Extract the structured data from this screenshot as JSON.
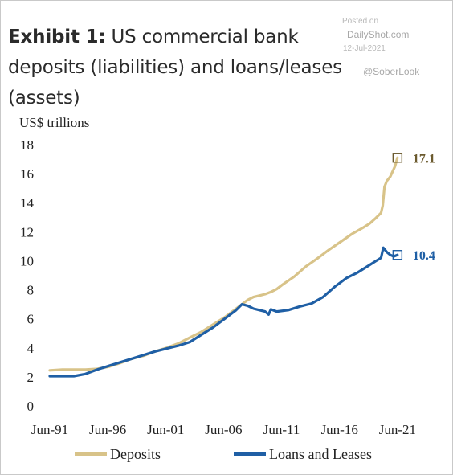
{
  "header": {
    "title_bold": "Exhibit 1:",
    "title_text": " US commercial bank deposits (liabilities) and loans/leases (assets)"
  },
  "watermark": {
    "posted": "Posted on",
    "site": "DailyShot.com",
    "date": "12-Jul-2021",
    "handle": "@SoberLook"
  },
  "chart_data": {
    "type": "line",
    "ylabel": "US$ trillions",
    "ylim": [
      0,
      18
    ],
    "yticks": [
      0,
      2,
      4,
      6,
      8,
      10,
      12,
      14,
      16,
      18
    ],
    "xlim": [
      1991.42,
      2021.5
    ],
    "xticks": [
      {
        "label": "Jun-91",
        "value": 1991.42
      },
      {
        "label": "Jun-96",
        "value": 1996.42
      },
      {
        "label": "Jun-01",
        "value": 2001.42
      },
      {
        "label": "Jun-06",
        "value": 2006.42
      },
      {
        "label": "Jun-11",
        "value": 2011.42
      },
      {
        "label": "Jun-16",
        "value": 2016.42
      },
      {
        "label": "Jun-21",
        "value": 2021.42
      }
    ],
    "grid": false,
    "legend_position": "bottom",
    "series": [
      {
        "name": "Deposits",
        "color": "#d8c389",
        "end_label": "17.1",
        "end_label_color": "#6b5a2e",
        "x": [
          1991.42,
          1992.5,
          1993.5,
          1994.5,
          1995.5,
          1996.5,
          1997.5,
          1998.5,
          1999.5,
          2000.5,
          2001.5,
          2002.5,
          2003.5,
          2004.5,
          2005.5,
          2006.5,
          2007.5,
          2008.0,
          2008.5,
          2009.0,
          2009.5,
          2010.0,
          2010.5,
          2011.0,
          2011.5,
          2012.5,
          2013.5,
          2014.5,
          2015.5,
          2016.5,
          2017.5,
          2018.5,
          2019.0,
          2019.5,
          2020.0,
          2020.15,
          2020.3,
          2020.5,
          2020.8,
          2021.2,
          2021.42
        ],
        "values": [
          2.45,
          2.5,
          2.5,
          2.5,
          2.55,
          2.7,
          2.95,
          3.25,
          3.45,
          3.75,
          4.0,
          4.3,
          4.7,
          5.1,
          5.6,
          6.1,
          6.7,
          7.0,
          7.3,
          7.5,
          7.6,
          7.7,
          7.85,
          8.05,
          8.35,
          8.9,
          9.6,
          10.15,
          10.75,
          11.3,
          11.85,
          12.3,
          12.55,
          12.9,
          13.3,
          13.8,
          15.1,
          15.5,
          15.8,
          16.5,
          17.1
        ]
      },
      {
        "name": "Loans and Leases",
        "color": "#1f5fa5",
        "end_label": "10.4",
        "end_label_color": "#1f5fa5",
        "x": [
          1991.42,
          1992.5,
          1993.5,
          1994.5,
          1995.5,
          1996.5,
          1997.5,
          1998.5,
          1999.5,
          2000.5,
          2001.5,
          2002.5,
          2003.5,
          2004.5,
          2005.5,
          2006.5,
          2007.5,
          2008.0,
          2008.5,
          2009.0,
          2009.5,
          2010.0,
          2010.3,
          2010.5,
          2011.0,
          2012.0,
          2013.0,
          2014.0,
          2015.0,
          2016.0,
          2017.0,
          2018.0,
          2019.0,
          2019.5,
          2020.0,
          2020.2,
          2020.5,
          2020.8,
          2021.1,
          2021.42
        ],
        "values": [
          2.05,
          2.05,
          2.05,
          2.2,
          2.5,
          2.75,
          3.0,
          3.25,
          3.5,
          3.75,
          3.95,
          4.15,
          4.4,
          4.9,
          5.4,
          6.0,
          6.6,
          7.0,
          6.9,
          6.7,
          6.6,
          6.5,
          6.3,
          6.65,
          6.5,
          6.6,
          6.85,
          7.05,
          7.5,
          8.2,
          8.8,
          9.2,
          9.7,
          9.95,
          10.2,
          10.9,
          10.6,
          10.4,
          10.3,
          10.4
        ]
      }
    ]
  }
}
